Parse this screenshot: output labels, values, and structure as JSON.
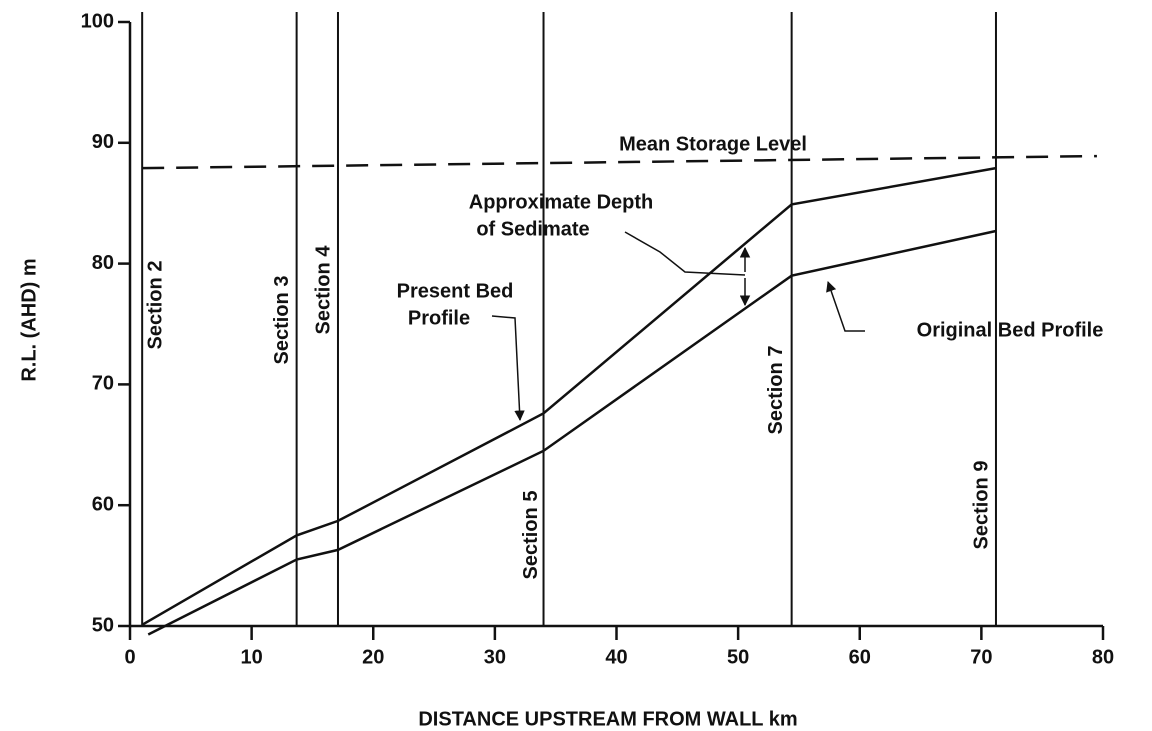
{
  "chart_data": {
    "type": "line",
    "x_label": "DISTANCE UPSTREAM FROM WALL km",
    "y_label": "R.L. (AHD) m",
    "xlim": [
      0,
      80
    ],
    "xticks": [
      0,
      10,
      20,
      30,
      40,
      50,
      60,
      70,
      80
    ],
    "ylim": [
      50,
      100
    ],
    "yticks": [
      50,
      60,
      70,
      80,
      90,
      100
    ],
    "series": [
      {
        "color": "#111111",
        "dash": false,
        "x": [
          1,
          13.7,
          17.1,
          34,
          54.4,
          71.2
        ],
        "values": [
          50.1,
          57.5,
          58.7,
          67.6,
          84.9,
          87.9
        ]
      },
      {
        "color": "#111111",
        "dash": false,
        "x": [
          1.5,
          13.7,
          17.1,
          34,
          54.4,
          71.2
        ],
        "values": [
          49.3,
          55.5,
          56.3,
          64.5,
          79,
          82.7
        ]
      },
      {
        "color": "#111111",
        "dash": true,
        "x": [
          1,
          79.5
        ],
        "values": [
          87.9,
          88.9
        ]
      }
    ],
    "sections": [
      {
        "label": "Section 2",
        "x": 1
      },
      {
        "label": "Section 3",
        "x": 13.7
      },
      {
        "label": "Section 4",
        "x": 17.1
      },
      {
        "label": "Section 5",
        "x": 34
      },
      {
        "label": "Section 7",
        "x": 54.4
      },
      {
        "label": "Section 9",
        "x": 71.2
      }
    ],
    "annotations": [
      {
        "lines": [
          "Mean Storage Level"
        ]
      },
      {
        "lines": [
          "Approximate Depth",
          "of Sedimate"
        ]
      },
      {
        "lines": [
          "Present Bed",
          "Profile"
        ]
      },
      {
        "lines": [
          "Original Bed Profile"
        ]
      }
    ]
  }
}
